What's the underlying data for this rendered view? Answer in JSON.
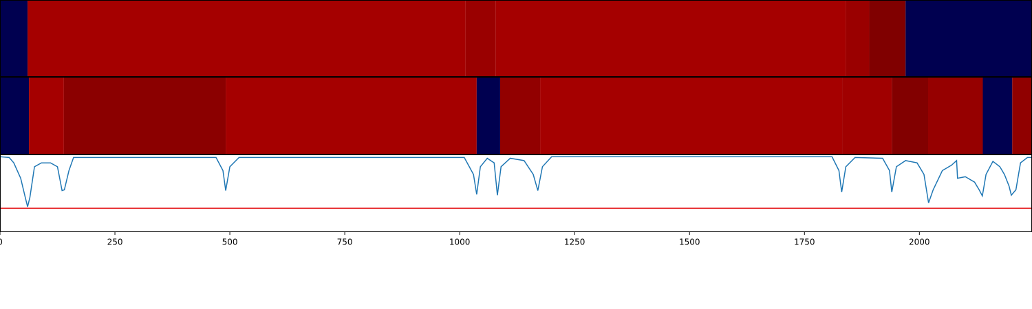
{
  "chart_data": [
    {
      "type": "strip",
      "xlim": [
        0,
        2245
      ],
      "bins": [
        0,
        60,
        1013,
        1078,
        1840,
        1891,
        1970,
        2245
      ],
      "colors": [
        "#000050",
        "#a50000",
        "#9a0000",
        "#a50000",
        "#9a0000",
        "#800000",
        "#000050"
      ]
    },
    {
      "type": "strip",
      "xlim": [
        0,
        2245
      ],
      "bins": [
        0,
        63,
        139,
        491,
        1037,
        1088,
        1175,
        1832,
        1940,
        2019,
        2138,
        2202,
        2245
      ],
      "colors": [
        "#000050",
        "#a50000",
        "#8b0000",
        "#a50000",
        "#000050",
        "#920000",
        "#a50000",
        "#a00000",
        "#820000",
        "#960000",
        "#000050",
        "#900000"
      ]
    },
    {
      "type": "line",
      "xlim": [
        0,
        2245
      ],
      "ylim": [
        0,
        1
      ],
      "xticks": [
        0,
        250,
        500,
        750,
        1000,
        1250,
        1500,
        1750,
        2000
      ],
      "threshold": 0.31,
      "threshold_color": "#e41a1c",
      "color": "#1f77b4",
      "x": [
        0,
        20,
        30,
        45,
        55,
        60,
        65,
        75,
        90,
        110,
        125,
        135,
        140,
        150,
        160,
        470,
        485,
        491,
        500,
        520,
        1010,
        1030,
        1037,
        1045,
        1060,
        1075,
        1082,
        1090,
        1110,
        1140,
        1160,
        1170,
        1180,
        1200,
        1810,
        1825,
        1831,
        1840,
        1860,
        1920,
        1935,
        1940,
        1950,
        1970,
        1995,
        2010,
        2020,
        2030,
        2050,
        2070,
        2081,
        2083,
        2100,
        2120,
        2130,
        2137,
        2145,
        2160,
        2175,
        2185,
        2195,
        2200,
        2210,
        2220,
        2235,
        2245
      ],
      "values": [
        0.98,
        0.97,
        0.9,
        0.7,
        0.45,
        0.33,
        0.45,
        0.85,
        0.9,
        0.9,
        0.85,
        0.54,
        0.55,
        0.8,
        0.97,
        0.97,
        0.8,
        0.54,
        0.85,
        0.97,
        0.97,
        0.75,
        0.49,
        0.85,
        0.96,
        0.9,
        0.48,
        0.85,
        0.96,
        0.93,
        0.75,
        0.54,
        0.85,
        0.98,
        0.98,
        0.8,
        0.52,
        0.85,
        0.97,
        0.96,
        0.8,
        0.52,
        0.85,
        0.93,
        0.9,
        0.75,
        0.38,
        0.55,
        0.8,
        0.87,
        0.93,
        0.7,
        0.72,
        0.65,
        0.55,
        0.47,
        0.75,
        0.92,
        0.85,
        0.75,
        0.6,
        0.48,
        0.55,
        0.9,
        0.97,
        0.97
      ]
    }
  ]
}
